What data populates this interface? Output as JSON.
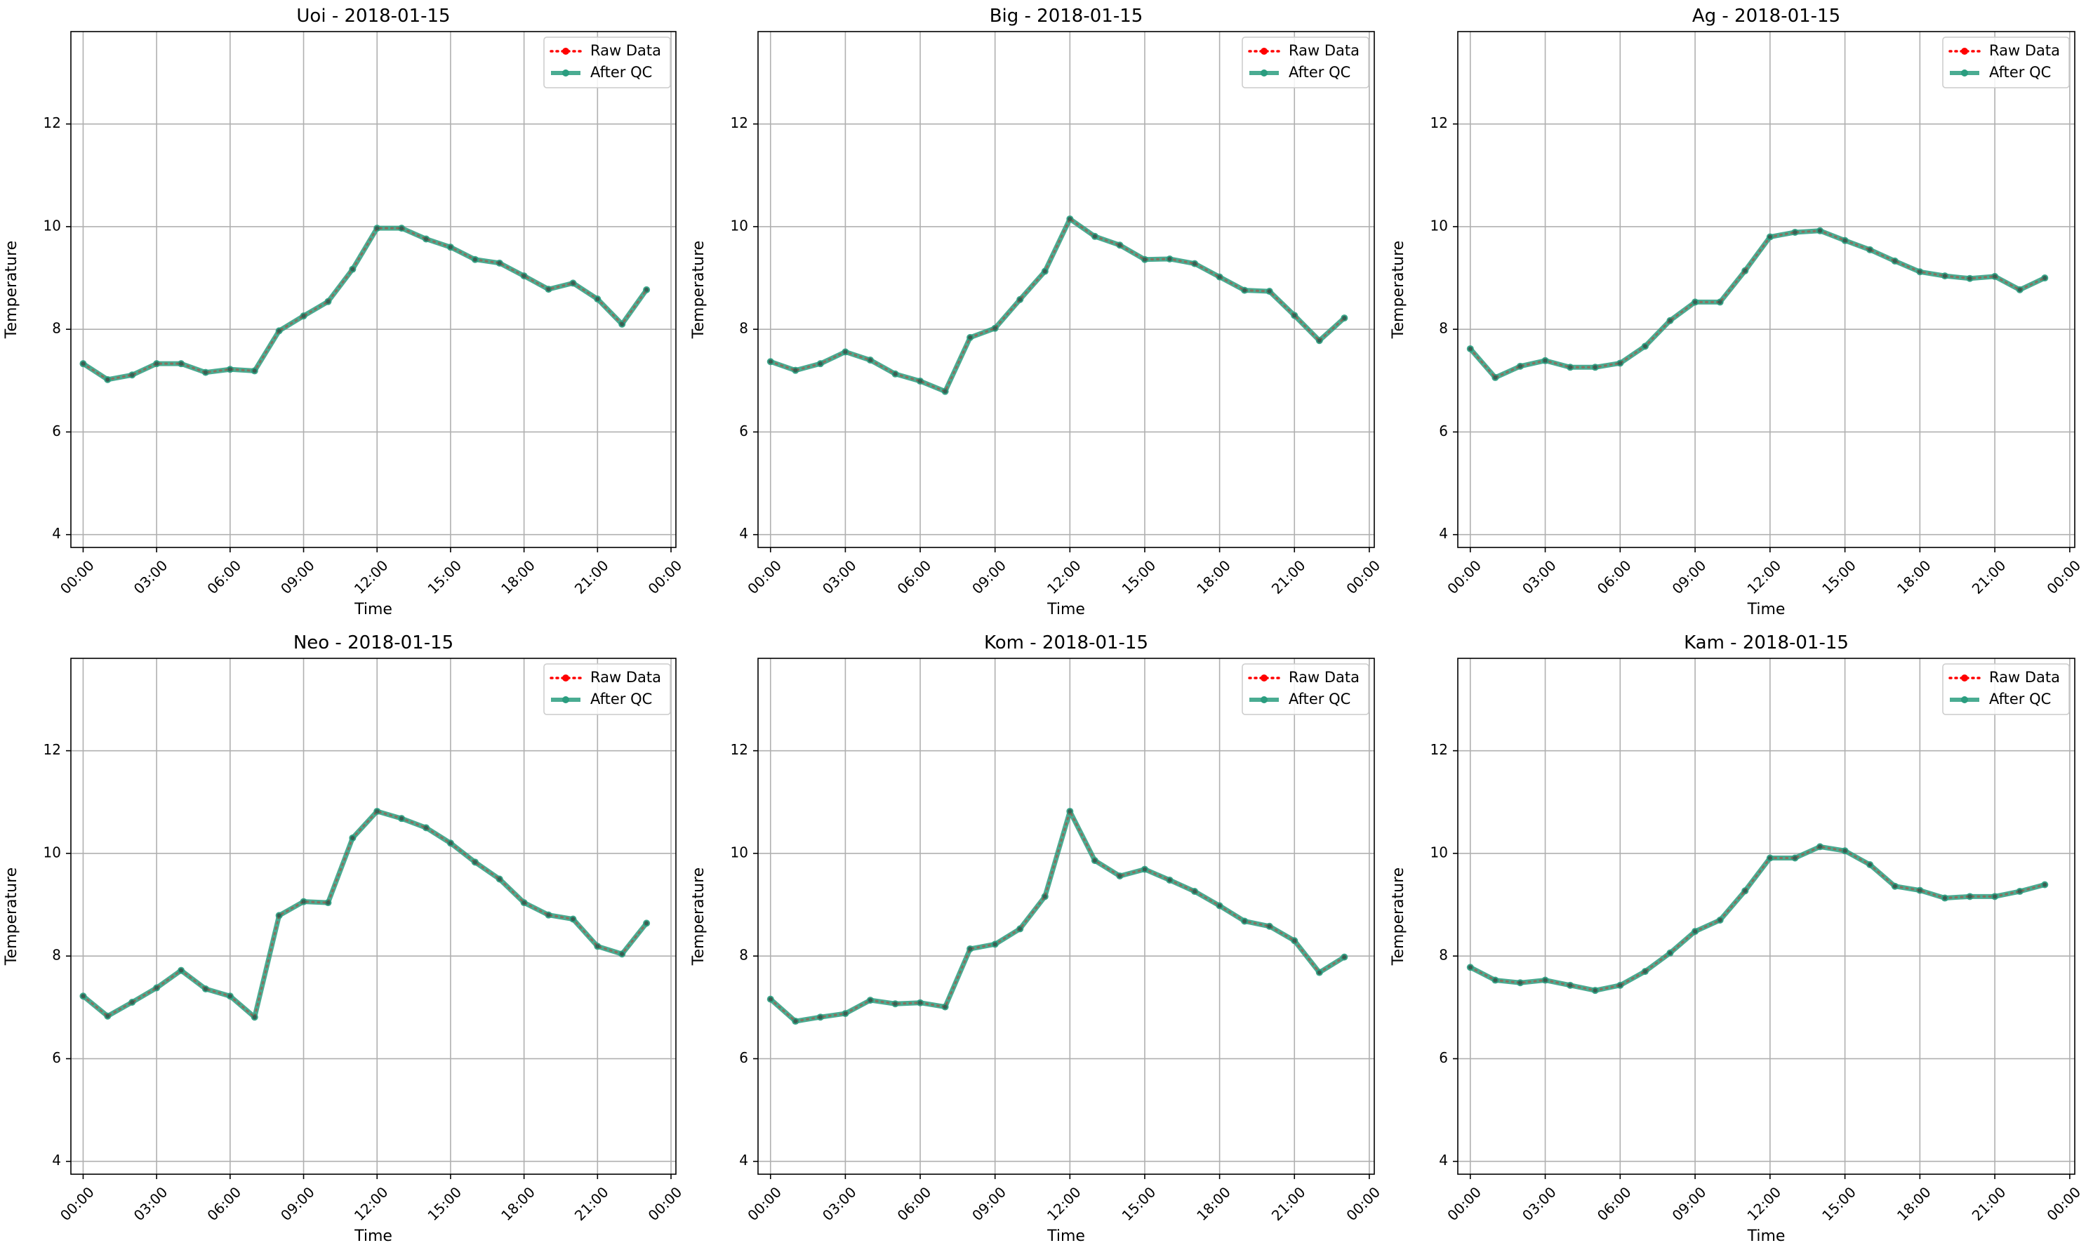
{
  "chart_data": [
    {
      "type": "line",
      "title": "Uoi - 2018-01-15",
      "xlabel": "Time",
      "ylabel": "Temperature",
      "x": [
        "00:00",
        "01:00",
        "02:00",
        "03:00",
        "04:00",
        "05:00",
        "06:00",
        "07:00",
        "08:00",
        "09:00",
        "10:00",
        "11:00",
        "12:00",
        "13:00",
        "14:00",
        "15:00",
        "16:00",
        "17:00",
        "18:00",
        "19:00",
        "20:00",
        "21:00",
        "22:00",
        "23:00"
      ],
      "xticks": [
        "00:00",
        "03:00",
        "06:00",
        "09:00",
        "12:00",
        "15:00",
        "18:00",
        "21:00",
        "00:00"
      ],
      "yticks": [
        "4",
        "6",
        "8",
        "10",
        "12"
      ],
      "xlim": [
        -0.5,
        24.2
      ],
      "ylim": [
        3.75,
        13.8
      ],
      "grid": true,
      "legend": "top-right",
      "series": [
        {
          "name": "Raw Data",
          "color": "#ff0000",
          "values": [
            7.33,
            7.02,
            7.11,
            7.33,
            7.33,
            7.16,
            7.22,
            7.19,
            7.97,
            8.26,
            8.54,
            9.17,
            9.97,
            9.97,
            9.76,
            9.6,
            9.36,
            9.29,
            9.04,
            8.78,
            8.9,
            8.59,
            8.1,
            8.77
          ]
        },
        {
          "name": "After QC",
          "color": "#2a9d7f",
          "values": [
            7.33,
            7.02,
            7.11,
            7.33,
            7.33,
            7.16,
            7.22,
            7.19,
            7.97,
            8.26,
            8.54,
            9.17,
            9.97,
            9.97,
            9.76,
            9.6,
            9.36,
            9.29,
            9.04,
            8.78,
            8.9,
            8.59,
            8.1,
            8.77
          ]
        }
      ]
    },
    {
      "type": "line",
      "title": "Big - 2018-01-15",
      "xlabel": "Time",
      "ylabel": "Temperature",
      "x": [
        "00:00",
        "01:00",
        "02:00",
        "03:00",
        "04:00",
        "05:00",
        "06:00",
        "07:00",
        "08:00",
        "09:00",
        "10:00",
        "11:00",
        "12:00",
        "13:00",
        "14:00",
        "15:00",
        "16:00",
        "17:00",
        "18:00",
        "19:00",
        "20:00",
        "21:00",
        "22:00",
        "23:00"
      ],
      "xticks": [
        "00:00",
        "03:00",
        "06:00",
        "09:00",
        "12:00",
        "15:00",
        "18:00",
        "21:00",
        "00:00"
      ],
      "yticks": [
        "4",
        "6",
        "8",
        "10",
        "12"
      ],
      "xlim": [
        -0.5,
        24.2
      ],
      "ylim": [
        3.75,
        13.8
      ],
      "grid": true,
      "legend": "top-right",
      "series": [
        {
          "name": "Raw Data",
          "color": "#ff0000",
          "values": [
            7.37,
            7.2,
            7.33,
            7.56,
            7.4,
            7.13,
            6.99,
            6.79,
            7.84,
            8.02,
            8.58,
            9.13,
            10.15,
            9.81,
            9.64,
            9.36,
            9.37,
            9.28,
            9.02,
            8.76,
            8.74,
            8.27,
            7.78,
            8.22
          ]
        },
        {
          "name": "After QC",
          "color": "#2a9d7f",
          "values": [
            7.37,
            7.2,
            7.33,
            7.56,
            7.4,
            7.13,
            6.99,
            6.79,
            7.84,
            8.02,
            8.58,
            9.13,
            10.15,
            9.81,
            9.64,
            9.36,
            9.37,
            9.28,
            9.02,
            8.76,
            8.74,
            8.27,
            7.78,
            8.22
          ]
        }
      ]
    },
    {
      "type": "line",
      "title": "Ag - 2018-01-15",
      "xlabel": "Time",
      "ylabel": "Temperature",
      "x": [
        "00:00",
        "01:00",
        "02:00",
        "03:00",
        "04:00",
        "05:00",
        "06:00",
        "07:00",
        "08:00",
        "09:00",
        "10:00",
        "11:00",
        "12:00",
        "13:00",
        "14:00",
        "15:00",
        "16:00",
        "17:00",
        "18:00",
        "19:00",
        "20:00",
        "21:00",
        "22:00",
        "23:00"
      ],
      "xticks": [
        "00:00",
        "03:00",
        "06:00",
        "09:00",
        "12:00",
        "15:00",
        "18:00",
        "21:00",
        "00:00"
      ],
      "yticks": [
        "4",
        "6",
        "8",
        "10",
        "12"
      ],
      "xlim": [
        -0.5,
        24.2
      ],
      "ylim": [
        3.75,
        13.8
      ],
      "grid": true,
      "legend": "top-right",
      "series": [
        {
          "name": "Raw Data",
          "color": "#ff0000",
          "values": [
            7.62,
            7.06,
            7.28,
            7.39,
            7.26,
            7.26,
            7.34,
            7.67,
            8.17,
            8.53,
            8.53,
            9.14,
            9.8,
            9.89,
            9.92,
            9.73,
            9.55,
            9.33,
            9.12,
            9.04,
            8.99,
            9.03,
            8.77,
            9.0
          ]
        },
        {
          "name": "After QC",
          "color": "#2a9d7f",
          "values": [
            7.62,
            7.06,
            7.28,
            7.39,
            7.26,
            7.26,
            7.34,
            7.67,
            8.17,
            8.53,
            8.53,
            9.14,
            9.8,
            9.89,
            9.92,
            9.73,
            9.55,
            9.33,
            9.12,
            9.04,
            8.99,
            9.03,
            8.77,
            9.0
          ]
        }
      ]
    },
    {
      "type": "line",
      "title": "Neo - 2018-01-15",
      "xlabel": "Time",
      "ylabel": "Temperature",
      "x": [
        "00:00",
        "01:00",
        "02:00",
        "03:00",
        "04:00",
        "05:00",
        "06:00",
        "07:00",
        "08:00",
        "09:00",
        "10:00",
        "11:00",
        "12:00",
        "13:00",
        "14:00",
        "15:00",
        "16:00",
        "17:00",
        "18:00",
        "19:00",
        "20:00",
        "21:00",
        "22:00",
        "23:00"
      ],
      "xticks": [
        "00:00",
        "03:00",
        "06:00",
        "09:00",
        "12:00",
        "15:00",
        "18:00",
        "21:00",
        "00:00"
      ],
      "yticks": [
        "4",
        "6",
        "8",
        "10",
        "12"
      ],
      "xlim": [
        -0.5,
        24.2
      ],
      "ylim": [
        3.75,
        13.8
      ],
      "grid": true,
      "legend": "top-right",
      "series": [
        {
          "name": "Raw Data",
          "color": "#ff0000",
          "values": [
            7.22,
            6.83,
            7.1,
            7.38,
            7.72,
            7.36,
            7.22,
            6.81,
            8.79,
            9.06,
            9.04,
            10.3,
            10.82,
            10.68,
            10.5,
            10.2,
            9.83,
            9.5,
            9.04,
            8.8,
            8.72,
            8.19,
            8.04,
            8.64
          ]
        },
        {
          "name": "After QC",
          "color": "#2a9d7f",
          "values": [
            7.22,
            6.83,
            7.1,
            7.38,
            7.72,
            7.36,
            7.22,
            6.81,
            8.79,
            9.06,
            9.04,
            10.3,
            10.82,
            10.68,
            10.5,
            10.2,
            9.83,
            9.5,
            9.04,
            8.8,
            8.72,
            8.19,
            8.04,
            8.64
          ]
        }
      ]
    },
    {
      "type": "line",
      "title": "Kom - 2018-01-15",
      "xlabel": "Time",
      "ylabel": "Temperature",
      "x": [
        "00:00",
        "01:00",
        "02:00",
        "03:00",
        "04:00",
        "05:00",
        "06:00",
        "07:00",
        "08:00",
        "09:00",
        "10:00",
        "11:00",
        "12:00",
        "13:00",
        "14:00",
        "15:00",
        "16:00",
        "17:00",
        "18:00",
        "19:00",
        "20:00",
        "21:00",
        "22:00",
        "23:00"
      ],
      "xticks": [
        "00:00",
        "03:00",
        "06:00",
        "09:00",
        "12:00",
        "15:00",
        "18:00",
        "21:00",
        "00:00"
      ],
      "yticks": [
        "4",
        "6",
        "8",
        "10",
        "12"
      ],
      "xlim": [
        -0.5,
        24.2
      ],
      "ylim": [
        3.75,
        13.8
      ],
      "grid": true,
      "legend": "top-right",
      "series": [
        {
          "name": "Raw Data",
          "color": "#ff0000",
          "values": [
            7.16,
            6.73,
            6.81,
            6.88,
            7.14,
            7.07,
            7.09,
            7.01,
            8.14,
            8.23,
            8.53,
            9.16,
            10.82,
            9.86,
            9.56,
            9.69,
            9.48,
            9.26,
            8.98,
            8.68,
            8.58,
            8.3,
            7.68,
            7.98
          ]
        },
        {
          "name": "After QC",
          "color": "#2a9d7f",
          "values": [
            7.16,
            6.73,
            6.81,
            6.88,
            7.14,
            7.07,
            7.09,
            7.01,
            8.14,
            8.23,
            8.53,
            9.16,
            10.82,
            9.86,
            9.56,
            9.69,
            9.48,
            9.26,
            8.98,
            8.68,
            8.58,
            8.3,
            7.68,
            7.98
          ]
        }
      ]
    },
    {
      "type": "line",
      "title": "Kam - 2018-01-15",
      "xlabel": "Time",
      "ylabel": "Temperature",
      "x": [
        "00:00",
        "01:00",
        "02:00",
        "03:00",
        "04:00",
        "05:00",
        "06:00",
        "07:00",
        "08:00",
        "09:00",
        "10:00",
        "11:00",
        "12:00",
        "13:00",
        "14:00",
        "15:00",
        "16:00",
        "17:00",
        "18:00",
        "19:00",
        "20:00",
        "21:00",
        "22:00",
        "23:00"
      ],
      "xticks": [
        "00:00",
        "03:00",
        "06:00",
        "09:00",
        "12:00",
        "15:00",
        "18:00",
        "21:00",
        "00:00"
      ],
      "yticks": [
        "4",
        "6",
        "8",
        "10",
        "12"
      ],
      "xlim": [
        -0.5,
        24.2
      ],
      "ylim": [
        3.75,
        13.8
      ],
      "grid": true,
      "legend": "top-right",
      "series": [
        {
          "name": "Raw Data",
          "color": "#ff0000",
          "values": [
            7.78,
            7.53,
            7.48,
            7.53,
            7.43,
            7.33,
            7.43,
            7.7,
            8.06,
            8.48,
            8.7,
            9.27,
            9.91,
            9.91,
            10.13,
            10.05,
            9.78,
            9.36,
            9.28,
            9.13,
            9.16,
            9.16,
            9.26,
            9.39
          ]
        },
        {
          "name": "After QC",
          "color": "#2a9d7f",
          "values": [
            7.78,
            7.53,
            7.48,
            7.53,
            7.43,
            7.33,
            7.43,
            7.7,
            8.06,
            8.48,
            8.7,
            9.27,
            9.91,
            9.91,
            10.13,
            10.05,
            9.78,
            9.36,
            9.28,
            9.13,
            9.16,
            9.16,
            9.26,
            9.39
          ]
        }
      ]
    }
  ]
}
